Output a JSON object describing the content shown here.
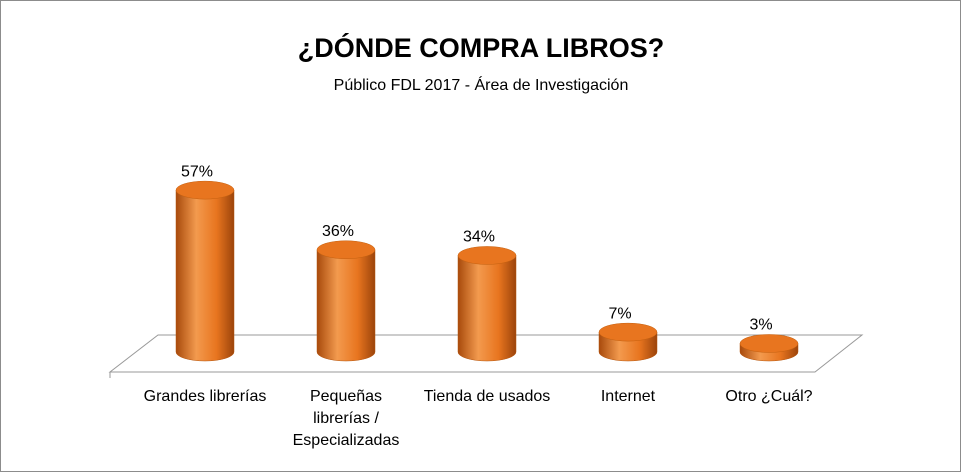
{
  "chart_data": {
    "type": "cylinder",
    "title": "¿DÓNDE COMPRA LIBROS?",
    "subtitle": "Público FDL 2017 - Área de Investigación",
    "categories": [
      "Grandes librerías",
      "Pequeñas librerías / Especializadas",
      "Tienda de usados",
      "Internet",
      "Otro ¿Cuál?"
    ],
    "values": [
      57,
      36,
      34,
      7,
      3
    ],
    "value_labels": [
      "57%",
      "36%",
      "34%",
      "7%",
      "3%"
    ],
    "color": "#e8751f"
  }
}
